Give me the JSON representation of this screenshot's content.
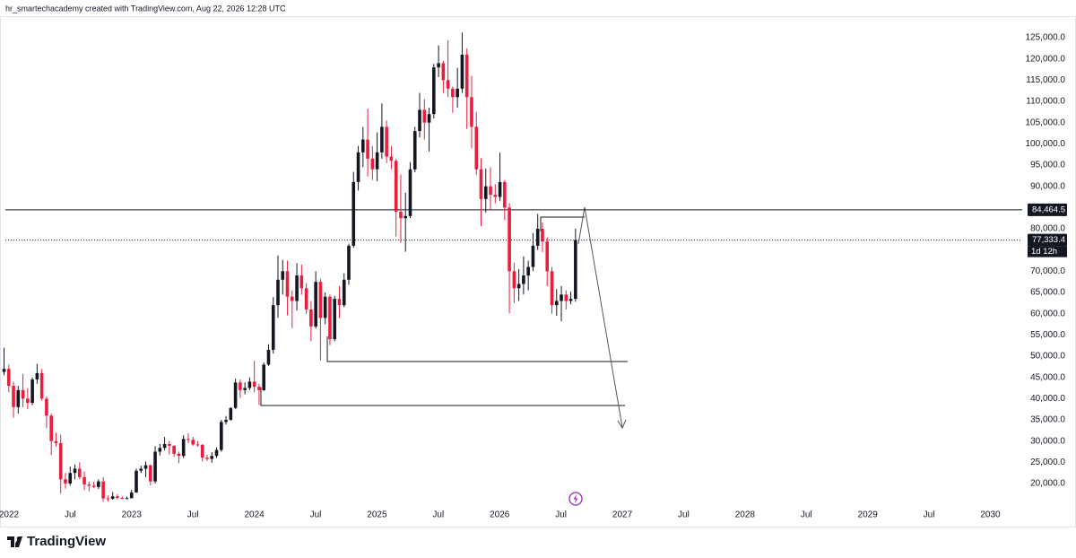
{
  "chart_data": {
    "type": "candlestick",
    "title": "hr_smartechacademy created with TradingView.com, Aug 22, 2026 12:28 UTC",
    "brand": "TradingView",
    "up_color": "#131722",
    "down_color": "#e91e3f",
    "grid": false,
    "xlim": [
      2021.927,
      2030.099
    ],
    "ylim": [
      15141,
      129225
    ],
    "xticks": [
      2022,
      {
        "value": 2022.5,
        "label": "Jul"
      },
      2023,
      {
        "value": 2023.5,
        "label": "Jul"
      },
      2024,
      {
        "value": 2024.5,
        "label": "Jul"
      },
      2025,
      {
        "value": 2025.5,
        "label": "Jul"
      },
      2026,
      {
        "value": 2026.5,
        "label": "Jul"
      },
      2027,
      {
        "value": 2027.5,
        "label": "Jul"
      },
      2028,
      {
        "value": 2028.5,
        "label": "Jul"
      },
      2029,
      {
        "value": 2029.5,
        "label": "Jul"
      },
      2030
    ],
    "yticks": [
      {
        "value": 20000,
        "label": "20,000.0"
      },
      {
        "value": 25000,
        "label": "25,000.0"
      },
      {
        "value": 30000,
        "label": "30,000.0"
      },
      {
        "value": 35000,
        "label": "35,000.0"
      },
      {
        "value": 40000,
        "label": "40,000.0"
      },
      {
        "value": 45000,
        "label": "45,000.0"
      },
      {
        "value": 50000,
        "label": "50,000.0"
      },
      {
        "value": 55000,
        "label": "55,000.0"
      },
      {
        "value": 60000,
        "label": "60,000.0"
      },
      {
        "value": 65000,
        "label": "65,000.0"
      },
      {
        "value": 70000,
        "label": "70,000.0"
      },
      {
        "value": 75000,
        "label": "75,000.0"
      },
      {
        "value": 80000,
        "label": "80,000.0"
      },
      {
        "value": 85000,
        "label": "85,000.0"
      },
      {
        "value": 90000,
        "label": "90,000.0"
      },
      {
        "value": 95000,
        "label": "95,000.0"
      },
      {
        "value": 100000,
        "label": "100,000.0"
      },
      {
        "value": 105000,
        "label": "105,000.0"
      },
      {
        "value": 110000,
        "label": "110,000.0"
      },
      {
        "value": 115000,
        "label": "115,000.0"
      },
      {
        "value": 120000,
        "label": "120,000.0"
      },
      {
        "value": 125000,
        "label": "125,000.0"
      }
    ],
    "horizontal_line": {
      "value": 84464.5,
      "label": "84,464.5"
    },
    "last_price": {
      "value": 77333.4,
      "label": "77,333.4",
      "countdown": "1d 12h"
    },
    "x": [
      2021.96,
      2021.9985,
      2022.037,
      2022.0755,
      2022.114,
      2022.1525,
      2022.191,
      2022.2295,
      2022.268,
      2022.3065,
      2022.345,
      2022.3835,
      2022.422,
      2022.4605,
      2022.499,
      2022.5375,
      2022.576,
      2022.6145,
      2022.653,
      2022.6915,
      2022.73,
      2022.7685,
      2022.807,
      2022.8455,
      2022.884,
      2022.9225,
      2022.961,
      2022.9995,
      2023.038,
      2023.0765,
      2023.115,
      2023.1535,
      2023.192,
      2023.2305,
      2023.269,
      2023.3075,
      2023.346,
      2023.3845,
      2023.423,
      2023.4615,
      2023.5,
      2023.5385,
      2023.577,
      2023.6155,
      2023.654,
      2023.6925,
      2023.731,
      2023.7695,
      2023.808,
      2023.8465,
      2023.885,
      2023.9235,
      2023.962,
      2024.0005,
      2024.039,
      2024.0775,
      2024.116,
      2024.1545,
      2024.193,
      2024.2315,
      2024.27,
      2024.3085,
      2024.347,
      2024.3855,
      2024.424,
      2024.4625,
      2024.501,
      2024.5395,
      2024.578,
      2024.6165,
      2024.655,
      2024.6935,
      2024.732,
      2024.7705,
      2024.809,
      2024.8475,
      2024.886,
      2024.9245,
      2024.963,
      2025.0015,
      2025.04,
      2025.0785,
      2025.117,
      2025.1555,
      2025.194,
      2025.2325,
      2025.271,
      2025.3095,
      2025.348,
      2025.3865,
      2025.425,
      2025.4635,
      2025.502,
      2025.5405,
      2025.579,
      2025.6175,
      2025.656,
      2025.6945,
      2025.733,
      2025.7715,
      2025.81,
      2025.8485,
      2025.887,
      2025.9255,
      2025.964,
      2026.0025,
      2026.041,
      2026.0795,
      2026.118,
      2026.1565,
      2026.195,
      2026.2335,
      2026.272,
      2026.3105,
      2026.349,
      2026.3875,
      2026.426,
      2026.4645,
      2026.503,
      2026.5415,
      2026.58,
      2026.6185
    ],
    "open": [
      46300,
      47000,
      43000,
      38000,
      42000,
      40000,
      39000,
      44500,
      46000,
      40000,
      36000,
      30000,
      29500,
      21000,
      20000,
      22500,
      23500,
      21500,
      19800,
      19500,
      19200,
      20500,
      16500,
      16400,
      17000,
      16600,
      16500,
      16550,
      17900,
      23000,
      23500,
      24300,
      20500,
      27500,
      28400,
      29300,
      28900,
      27000,
      26500,
      30500,
      30300,
      29200,
      29100,
      26100,
      25800,
      26500,
      27900,
      34500,
      35000,
      37800,
      43800,
      42000,
      42500,
      44000,
      42800,
      42000,
      48000,
      51500,
      62000,
      68000,
      70000,
      64000,
      63000,
      69000,
      66000,
      61000,
      57000,
      67500,
      59000,
      64000,
      54000,
      63500,
      62000,
      68000,
      76000,
      91000,
      98000,
      101000,
      96500,
      94000,
      98000,
      104000,
      97000,
      96000,
      84000,
      82500,
      83000,
      94000,
      103000,
      108000,
      105000,
      107000,
      118000,
      119000,
      115000,
      113000,
      111000,
      113000,
      121000,
      111000,
      104000,
      94000,
      87000,
      90000,
      88000,
      87500,
      91000,
      85000,
      70000,
      66000,
      67000,
      69000,
      71000,
      76000,
      80000,
      77000,
      70000,
      62000,
      63000,
      64500,
      63000,
      63500
    ],
    "high": [
      52000,
      48000,
      44000,
      43000,
      45800,
      42500,
      45000,
      48200,
      47000,
      40500,
      36500,
      32000,
      31500,
      22500,
      24000,
      24500,
      25000,
      22800,
      20500,
      20400,
      21000,
      21500,
      17200,
      18000,
      17500,
      17000,
      16900,
      18500,
      23500,
      24200,
      25200,
      24500,
      28800,
      29300,
      31000,
      30000,
      29000,
      27500,
      31400,
      31800,
      31000,
      30000,
      29300,
      26800,
      27400,
      28500,
      35000,
      35900,
      38000,
      44700,
      44500,
      43800,
      45000,
      48900,
      43500,
      48500,
      52800,
      63900,
      73700,
      72700,
      72500,
      65500,
      71900,
      71600,
      67200,
      63000,
      70000,
      68200,
      65000,
      64500,
      64200,
      66500,
      69500,
      76500,
      93400,
      99500,
      104000,
      108300,
      99500,
      102700,
      109500,
      105500,
      99500,
      96500,
      92800,
      88500,
      95700,
      104000,
      112000,
      110500,
      108500,
      118800,
      123200,
      119500,
      124400,
      113500,
      117900,
      126200,
      122500,
      116000,
      107500,
      96600,
      94200,
      94500,
      90500,
      97900,
      91500,
      86000,
      72000,
      70500,
      73500,
      72500,
      79000,
      83500,
      81500,
      78000,
      71000,
      65800,
      66500,
      65500,
      65200,
      80000
    ],
    "low": [
      45500,
      41500,
      35500,
      36500,
      38000,
      37500,
      38500,
      43500,
      39500,
      33000,
      26700,
      28700,
      17600,
      18800,
      19500,
      21000,
      21000,
      18500,
      18200,
      18900,
      18700,
      15700,
      15800,
      16200,
      16300,
      16300,
      16300,
      16500,
      17800,
      22500,
      21500,
      19600,
      20000,
      26600,
      27800,
      26800,
      26300,
      24800,
      26000,
      29500,
      28900,
      28700,
      25200,
      25300,
      24900,
      26000,
      27500,
      33900,
      34800,
      37500,
      40200,
      41000,
      42000,
      41500,
      38500,
      41800,
      47700,
      50600,
      59000,
      64500,
      59600,
      56600,
      60700,
      64500,
      60000,
      53500,
      56500,
      49000,
      57500,
      52600,
      53500,
      58900,
      61500,
      66800,
      75500,
      89000,
      94500,
      92300,
      91500,
      91200,
      96500,
      95500,
      94000,
      78200,
      76700,
      74600,
      82500,
      93300,
      101500,
      101000,
      98200,
      106000,
      115700,
      112000,
      111000,
      107300,
      108500,
      112000,
      103500,
      98900,
      92700,
      80600,
      83800,
      84400,
      86000,
      86500,
      82000,
      60100,
      62500,
      63000,
      64500,
      65500,
      70000,
      75000,
      74500,
      66500,
      60000,
      59500,
      58200,
      61000,
      62200,
      62800
    ],
    "close": [
      47000,
      43000,
      38000,
      42000,
      40000,
      39000,
      44500,
      46000,
      40000,
      36000,
      30000,
      29500,
      21000,
      20000,
      22500,
      23500,
      21500,
      19800,
      19500,
      19200,
      20500,
      16500,
      16400,
      17000,
      16600,
      16500,
      16550,
      17900,
      23000,
      23500,
      24300,
      20500,
      27500,
      28400,
      29300,
      28900,
      27000,
      26500,
      30500,
      30300,
      29200,
      29100,
      26100,
      25800,
      26500,
      27900,
      34500,
      35000,
      37800,
      43800,
      42000,
      42500,
      44000,
      42800,
      42000,
      48000,
      51500,
      62000,
      68000,
      70000,
      64000,
      63000,
      69000,
      66000,
      61000,
      57000,
      67500,
      59000,
      64000,
      54000,
      63500,
      62000,
      68000,
      76000,
      91000,
      98000,
      101000,
      96500,
      94000,
      98000,
      104000,
      97000,
      96000,
      84000,
      82500,
      83000,
      94000,
      103000,
      108000,
      105000,
      107000,
      118000,
      119000,
      115000,
      113000,
      111000,
      113000,
      121000,
      111000,
      104000,
      94000,
      87000,
      90000,
      88000,
      87500,
      91000,
      85000,
      70000,
      66000,
      67000,
      69000,
      71000,
      76000,
      80000,
      77000,
      70000,
      62000,
      63000,
      64500,
      63000,
      63500,
      77333.4
    ]
  }
}
